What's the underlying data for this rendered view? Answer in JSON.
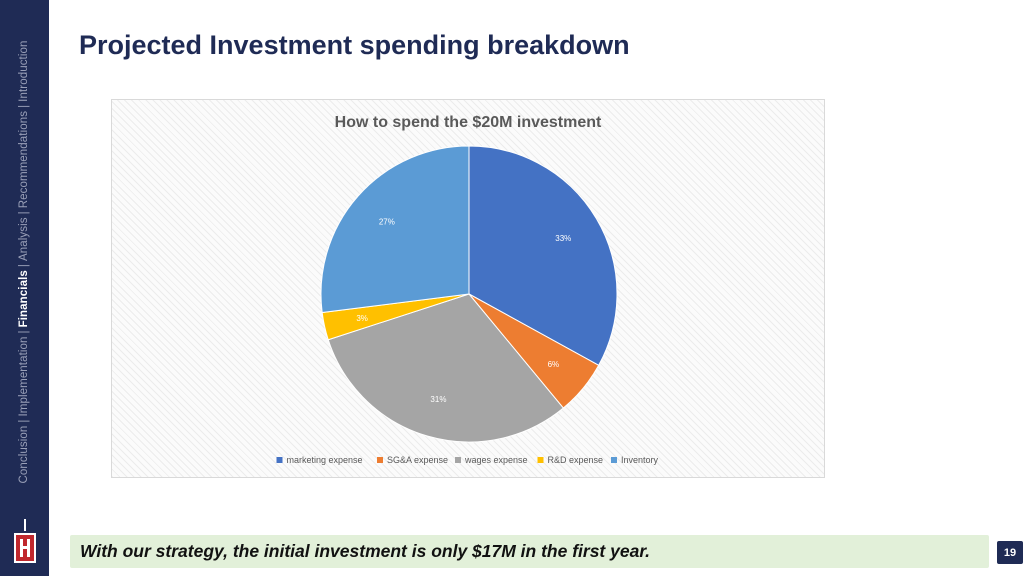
{
  "sidebar": {
    "nav": [
      {
        "label": "Conclusion",
        "active": false
      },
      {
        "label": "Implementation",
        "active": false
      },
      {
        "label": "Financials",
        "active": true
      },
      {
        "label": "Analysis",
        "active": false
      },
      {
        "label": "Recommendations",
        "active": false
      },
      {
        "label": "Introduction",
        "active": false
      }
    ],
    "separator": "|"
  },
  "page": {
    "title": "Projected Investment spending breakdown",
    "footer_note": "With our strategy, the initial investment is only $17M in the first year.",
    "page_number": "19"
  },
  "colors": {
    "navy": "#1f2b55",
    "footer_bg": "#e2f0d9",
    "logo_red": "#c0282d"
  },
  "chart_data": {
    "type": "pie",
    "title": "How to spend the $20M investment",
    "categories": [
      "marketing expense",
      "SG&A expense",
      "wages expense",
      "R&D expense",
      "Inventory"
    ],
    "values": [
      33,
      6,
      31,
      3,
      27
    ],
    "data_labels": [
      "33%",
      "6%",
      "31%",
      "3%",
      "27%"
    ],
    "colors": [
      "#4472c4",
      "#ed7d31",
      "#a5a5a5",
      "#ffc000",
      "#5b9bd5"
    ],
    "start_angle": "12 o'clock",
    "direction": "clockwise",
    "legend_position": "bottom"
  }
}
